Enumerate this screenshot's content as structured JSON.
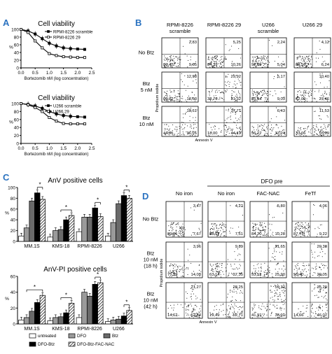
{
  "panels": {
    "A": {
      "letter": "A"
    },
    "B": {
      "letter": "B"
    },
    "C": {
      "letter": "C"
    },
    "D": {
      "letter": "D"
    }
  },
  "flow_B": {
    "col_headers": [
      "RPMI-8226\nscramble",
      "RPMI-8226 29",
      "U266\nscramble",
      "U266 29"
    ],
    "row_labels": [
      "No Btz",
      "Btz\n5 nM",
      "Btz\n10 nM"
    ],
    "ylabel": "Propidium iodide",
    "xlabel": "Annexin V",
    "quadrants": [
      [
        [
          "87,47",
          "2,83",
          "9,65"
        ],
        [
          "84,39",
          "5,25",
          "10,26"
        ],
        [
          "92,59",
          "2,24",
          "5,04"
        ],
        [
          "89,56",
          "4,12",
          "6,24"
        ]
      ],
      [
        [
          "69,02",
          "12,98",
          "18,03"
        ],
        [
          "38,76",
          "29,92",
          "31,32"
        ],
        [
          "85,64",
          "5,17",
          "9,03"
        ],
        [
          "62,09",
          "10,40",
          "27,46"
        ]
      ],
      [
        [
          "44,75",
          "18,61",
          "36,26"
        ],
        [
          "18,00",
          "37,71",
          "44,19"
        ],
        [
          "56,27",
          "6,43",
          "37,24"
        ],
        [
          "33,06",
          "11,53",
          "55,69"
        ]
      ]
    ]
  },
  "flow_D": {
    "group_header": "DFO pre",
    "col_headers": [
      "No iron",
      "No iron",
      "FAC-NAC",
      "FeTf"
    ],
    "row_labels": [
      "No Btz",
      "Btz\n10 nM\n(18 h)",
      "Btz\n10 nM\n(42 h)"
    ],
    "ylabel": "Propidium iodide",
    "xlabel": "Annexin V",
    "quadrants": [
      [
        [
          "89,81",
          "3,47",
          "7,67"
        ],
        [
          "88,57",
          "4,22",
          "7,51"
        ],
        [
          "84,20",
          "5,80",
          "10,28"
        ],
        [
          "87,73",
          "4,06",
          "9,22"
        ]
      ],
      [
        [
          "75,59",
          "3,96",
          "14,03"
        ],
        [
          "63,14",
          "9,89",
          "27,35"
        ],
        [
          "53,52",
          "21,65",
          "25,90"
        ],
        [
          "50,40",
          "20,38",
          "29,05"
        ]
      ],
      [
        [
          "14,62",
          "21,27",
          "62,84"
        ],
        [
          "19,49",
          "28,25",
          "52,71"
        ],
        [
          "41,91",
          "59,32",
          "36,91"
        ],
        [
          "14,66",
          "35,29",
          "46,07"
        ]
      ]
    ]
  },
  "legend_C": {
    "items": [
      {
        "label": "untreated",
        "key": "untreated"
      },
      {
        "label": "DFO",
        "key": "dfo"
      },
      {
        "label": "Btz",
        "key": "btz"
      },
      {
        "label": "DFO-Btz",
        "key": "dfobtz"
      },
      {
        "label": "DFO-Btz-FAC-NAC",
        "key": "fac"
      }
    ]
  },
  "colors": {
    "untreated": "#ffffff",
    "dfo": "#9a9a9a",
    "btz": "#6a6a6a",
    "dfobtz": "#000000"
  },
  "chart_data": [
    {
      "id": "A1",
      "type": "line",
      "title": "Cell viability",
      "xlabel": "Bortezomib nM (log concentration)",
      "ylabel": "%",
      "xlim": [
        0.0,
        2.5
      ],
      "ylim": [
        0,
        100
      ],
      "xticks": [
        "0.0",
        "0.5",
        "1.0",
        "1.5",
        "2.0",
        "2.5"
      ],
      "yticks": [
        "0",
        "20",
        "40",
        "60",
        "80",
        "100"
      ],
      "series": [
        {
          "name": "RPMI-8226 scramble",
          "marker": "filled",
          "x": [
            0,
            0.25,
            0.5,
            0.75,
            1.0,
            1.25,
            1.5,
            1.75,
            2.0,
            2.25
          ],
          "y": [
            100,
            96,
            88,
            76,
            64,
            57,
            52,
            50,
            49,
            48
          ]
        },
        {
          "name": "RPMI-8226 29",
          "marker": "open",
          "x": [
            0,
            0.25,
            0.5,
            0.75,
            1.0,
            1.25,
            1.5,
            1.75,
            2.0,
            2.25
          ],
          "y": [
            100,
            92,
            70,
            52,
            37,
            32,
            29,
            28,
            27,
            27
          ]
        }
      ]
    },
    {
      "id": "A2",
      "type": "line",
      "title": "Cell viability",
      "xlabel": "Bortezomib nM (log concentration)",
      "ylabel": "%",
      "xlim": [
        0.0,
        2.5
      ],
      "ylim": [
        0,
        100
      ],
      "xticks": [
        "0.0",
        "0.5",
        "1.0",
        "1.5",
        "2.0",
        "2.5"
      ],
      "yticks": [
        "0",
        "20",
        "40",
        "60",
        "80",
        "100"
      ],
      "series": [
        {
          "name": "U266 scramble",
          "marker": "filled",
          "x": [
            0,
            0.25,
            0.5,
            0.75,
            1.0,
            1.25,
            1.5,
            1.75,
            2.0,
            2.25
          ],
          "y": [
            100,
            98,
            94,
            88,
            80,
            74,
            70,
            68,
            67,
            66
          ]
        },
        {
          "name": "U266 29",
          "marker": "open",
          "x": [
            0,
            0.25,
            0.5,
            0.75,
            1.0,
            1.25,
            1.5,
            1.75,
            2.0,
            2.25
          ],
          "y": [
            100,
            97,
            90,
            80,
            65,
            56,
            50,
            49,
            49,
            49
          ]
        }
      ]
    },
    {
      "id": "C1",
      "type": "bar",
      "title": "AnV positive cells",
      "ylabel": "%",
      "ylim": [
        0,
        100
      ],
      "yticks": [
        "0",
        "20",
        "40",
        "60",
        "80",
        "100"
      ],
      "categories": [
        "MM.1S",
        "KMS-18",
        "RPMI-8226",
        "U266"
      ],
      "series": [
        {
          "name": "untreated",
          "key": "untreated",
          "values": [
            10,
            8,
            18,
            10
          ]
        },
        {
          "name": "DFO",
          "key": "dfo",
          "values": [
            25,
            20,
            45,
            35
          ]
        },
        {
          "name": "Btz",
          "key": "btz",
          "values": [
            75,
            22,
            45,
            70
          ]
        },
        {
          "name": "DFO-Btz",
          "key": "dfobtz",
          "values": [
            90,
            40,
            62,
            85
          ]
        },
        {
          "name": "DFO-Btz-FAC-NAC",
          "key": "fac",
          "values": [
            78,
            48,
            46,
            80
          ]
        }
      ],
      "significance": [
        [
          3,
          4
        ],
        [
          2,
          4
        ],
        [
          3,
          4
        ],
        [
          3,
          4
        ]
      ],
      "sig_mark": "*"
    },
    {
      "id": "C2",
      "type": "bar",
      "title": "AnV-PI positive cells",
      "ylabel": "%",
      "ylim": [
        0,
        60
      ],
      "yticks": [
        "0",
        "20",
        "40",
        "60"
      ],
      "categories": [
        "MM.1S",
        "KMS-18",
        "RPMI-8226",
        "U266"
      ],
      "series": [
        {
          "name": "untreated",
          "key": "untreated",
          "values": [
            5,
            4,
            8,
            3
          ]
        },
        {
          "name": "DFO",
          "key": "dfo",
          "values": [
            8,
            8,
            40,
            5
          ]
        },
        {
          "name": "Btz",
          "key": "btz",
          "values": [
            16,
            9,
            35,
            6
          ]
        },
        {
          "name": "DFO-Btz",
          "key": "dfobtz",
          "values": [
            27,
            14,
            50,
            10
          ]
        },
        {
          "name": "DFO-Btz-FAC-NAC",
          "key": "fac",
          "values": [
            36,
            26,
            52,
            17
          ]
        }
      ],
      "significance": [
        [
          1,
          4
        ],
        [
          2,
          4
        ],
        [
          3,
          4
        ],
        [
          3,
          4
        ]
      ],
      "sig_mark": "*"
    }
  ]
}
